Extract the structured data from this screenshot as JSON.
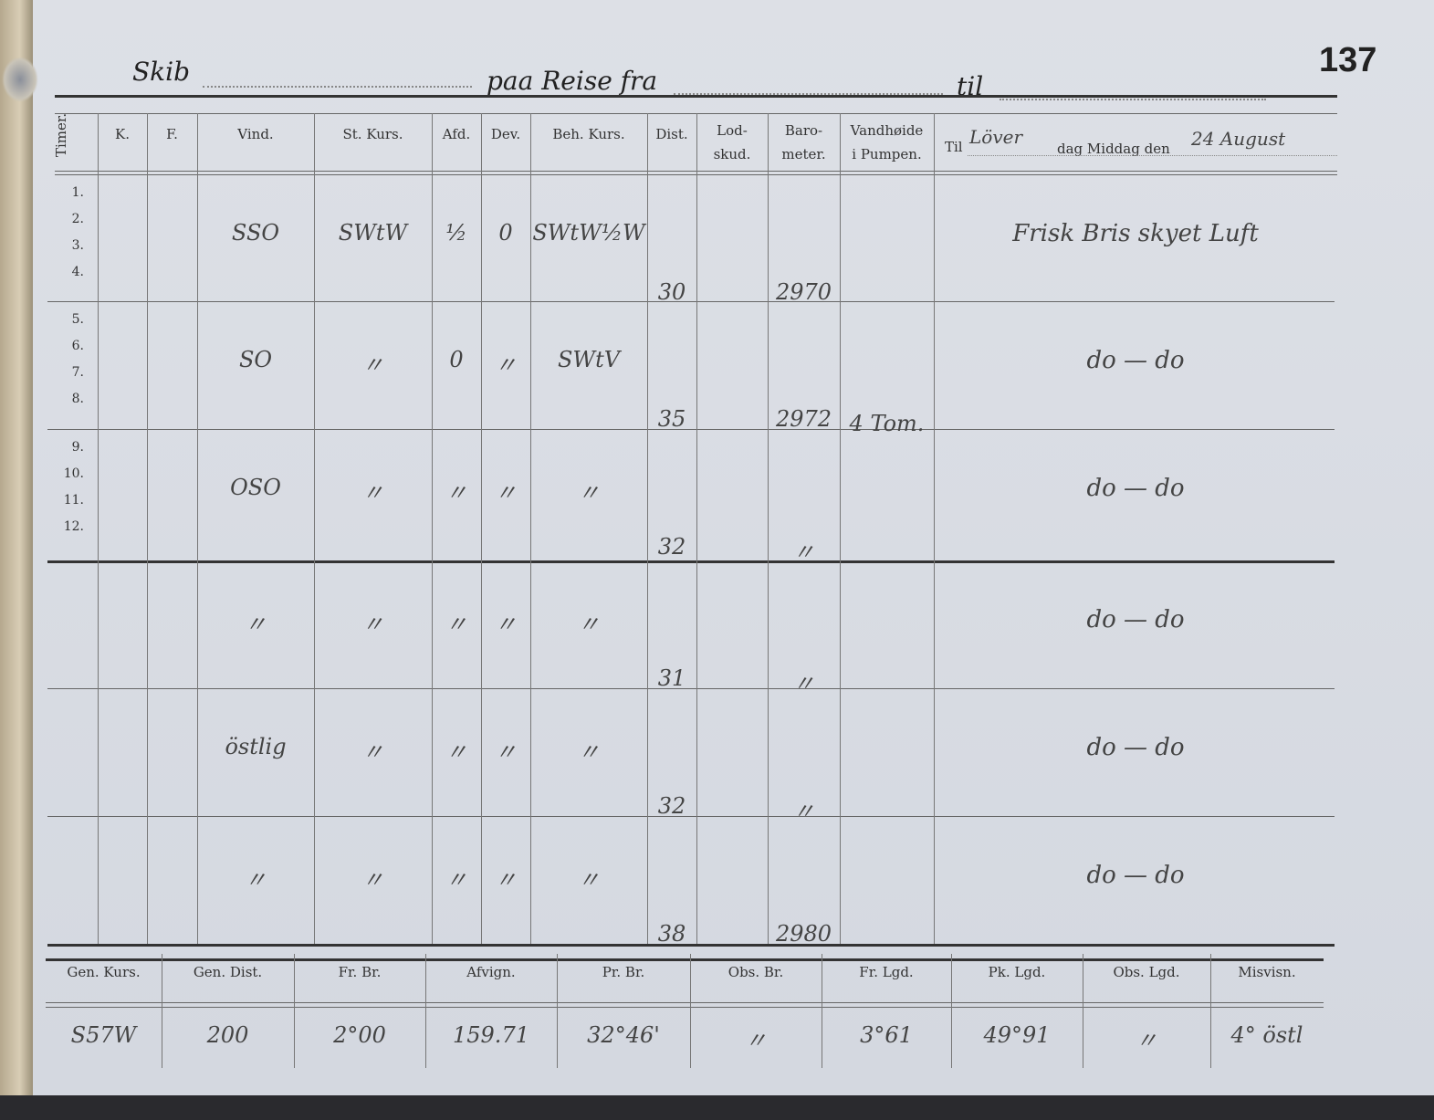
{
  "page_number": "137",
  "header": {
    "ship_label": "Skib",
    "voyage_from_label": "paa Reise fra",
    "to_label": "til"
  },
  "columns": {
    "timer": "Timer.",
    "k": "K.",
    "f": "F.",
    "vind": "Vind.",
    "st_kurs": "St. Kurs.",
    "afd": "Afd.",
    "dev": "Dev.",
    "beh_kurs": "Beh. Kurs.",
    "dist": "Dist.",
    "lod": "Lod-\nskud.",
    "baro": "Baro-\nmeter.",
    "vand": "Vandhøide\ni Pumpen."
  },
  "remarks_header": {
    "til": "Til",
    "day": "Löver",
    "dag_middag": "dag Middag den",
    "date": "24 August"
  },
  "hours": [
    "1.",
    "2.",
    "3.",
    "4.",
    "5.",
    "6.",
    "7.",
    "8.",
    "9.",
    "10.",
    "11.",
    "12."
  ],
  "watches": [
    {
      "vind": "SSO",
      "st_kurs": "SWtW",
      "afd": "½",
      "dev": "0",
      "beh_kurs": "SWtW½W",
      "dist": "30",
      "baro": "2970",
      "vand": "",
      "remark": "Frisk Bris skyet Luft"
    },
    {
      "vind": "SO",
      "st_kurs": "〃",
      "afd": "0",
      "dev": "〃",
      "beh_kurs": "SWtV",
      "dist": "35",
      "baro": "2972",
      "vand": "4 Tom.",
      "remark": "do — do"
    },
    {
      "vind": "OSO",
      "st_kurs": "〃",
      "afd": "〃",
      "dev": "〃",
      "beh_kurs": "〃",
      "dist": "32",
      "baro": "〃",
      "vand": "",
      "remark": "do — do"
    },
    {
      "vind": "〃",
      "st_kurs": "〃",
      "afd": "〃",
      "dev": "〃",
      "beh_kurs": "〃",
      "dist": "31",
      "baro": "〃",
      "vand": "",
      "remark": "do — do"
    },
    {
      "vind": "östlig",
      "st_kurs": "〃",
      "afd": "〃",
      "dev": "〃",
      "beh_kurs": "〃",
      "dist": "32",
      "baro": "〃",
      "vand": "",
      "remark": "do — do"
    },
    {
      "vind": "〃",
      "st_kurs": "〃",
      "afd": "〃",
      "dev": "〃",
      "beh_kurs": "〃",
      "dist": "38",
      "baro": "2980",
      "vand": "",
      "remark": "do — do"
    }
  ],
  "summary": {
    "headers": [
      "Gen. Kurs.",
      "Gen. Dist.",
      "Fr. Br.",
      "Afvign.",
      "Pr. Br.",
      "Obs. Br.",
      "Fr. Lgd.",
      "Pk. Lgd.",
      "Obs. Lgd.",
      "Misvisn."
    ],
    "values": [
      "S57W",
      "200",
      "2°00",
      "159.71",
      "32°46'",
      "〃",
      "3°61",
      "49°91",
      "〃",
      "4° östl"
    ]
  }
}
